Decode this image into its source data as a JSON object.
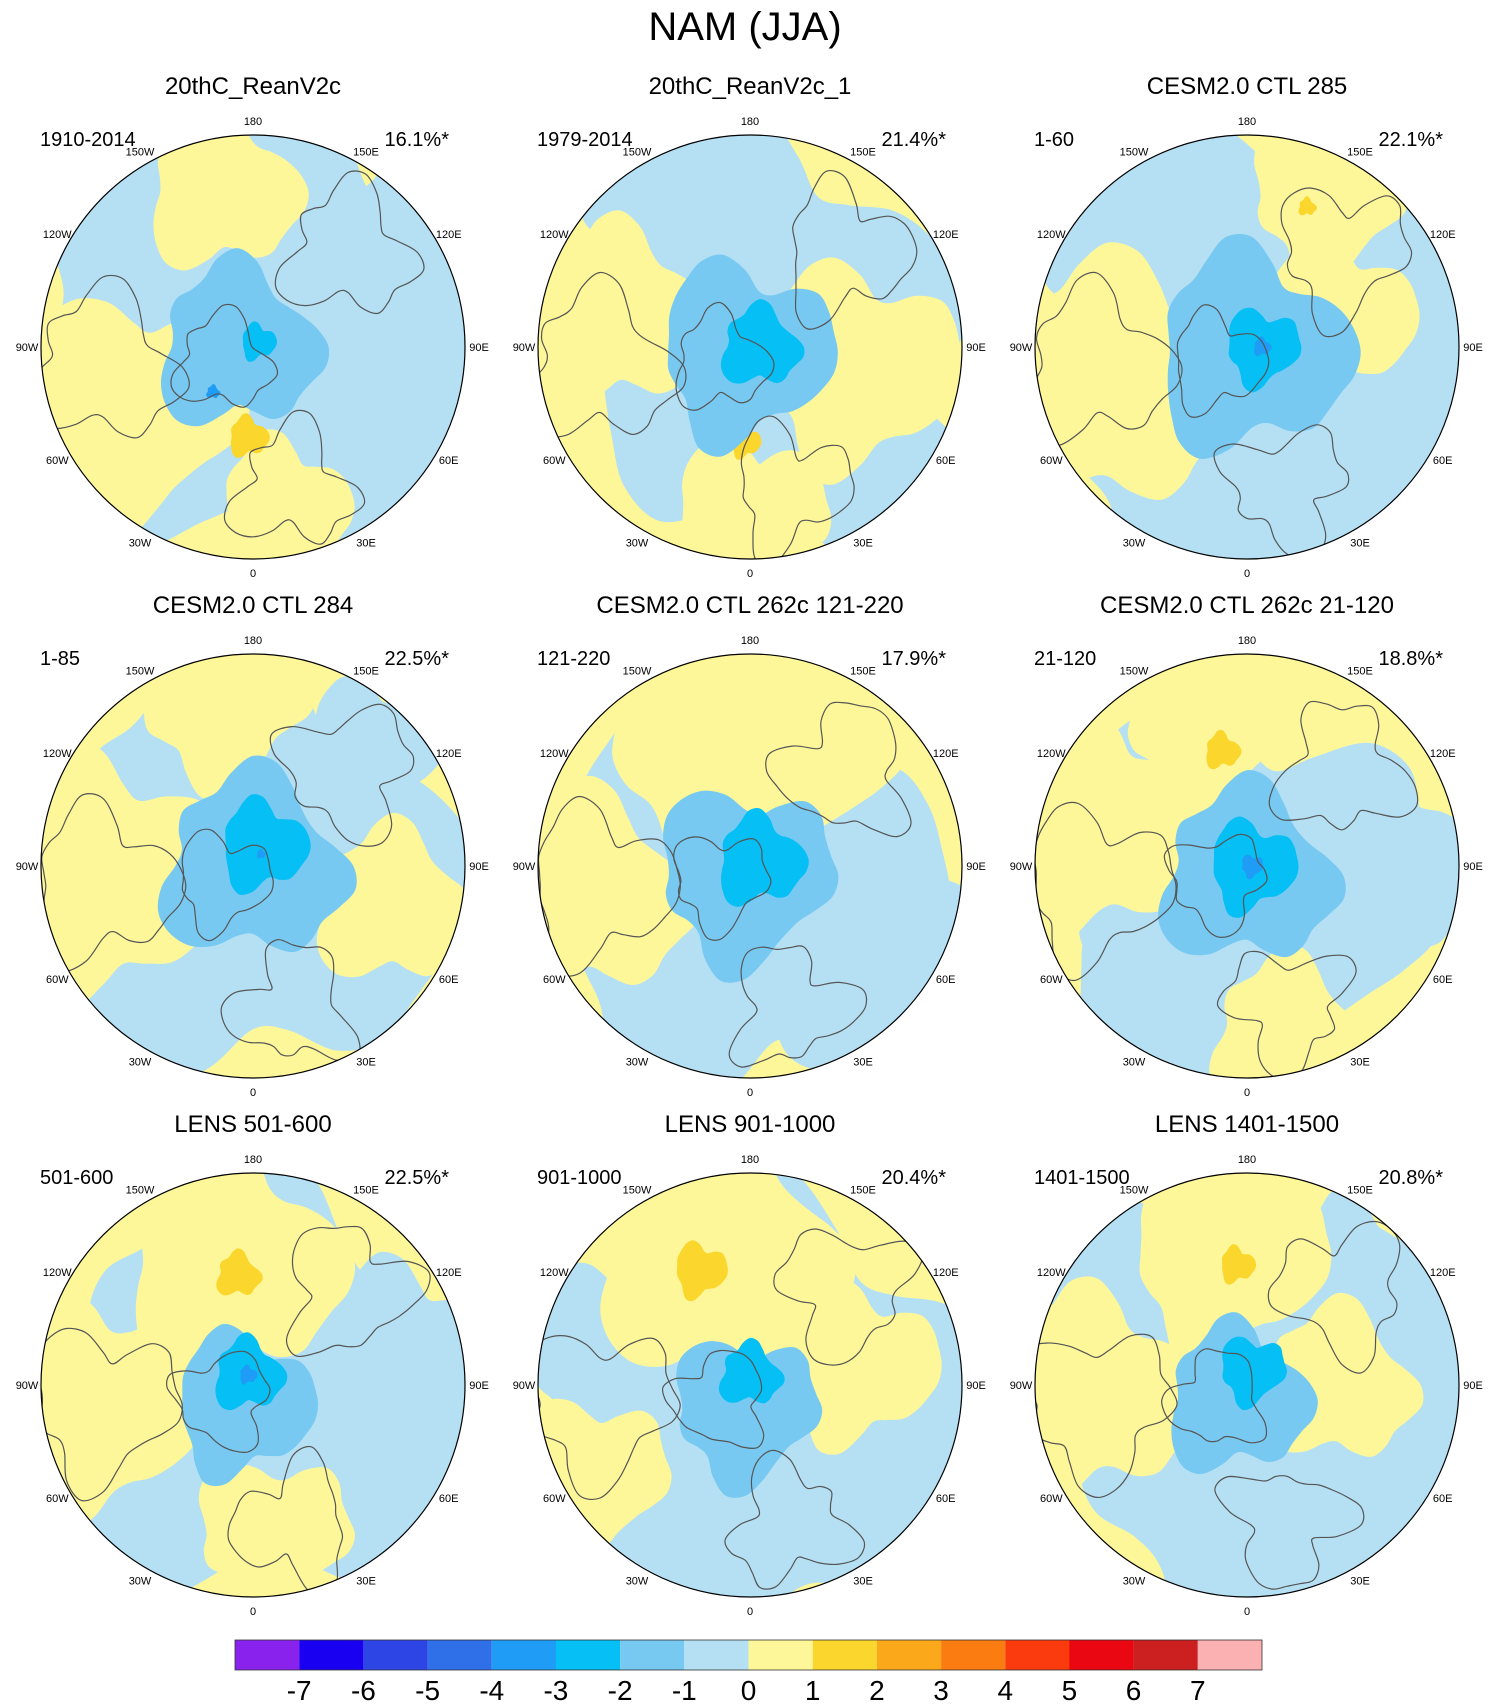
{
  "figure_title": "NAM (JJA)",
  "chart_data": {
    "type": "heatmap",
    "projection": "north-polar-stereographic",
    "title": "NAM (JJA)",
    "longitude_labels": [
      "180",
      "150E",
      "120E",
      "90E",
      "60E",
      "30E",
      "0",
      "30W",
      "60W",
      "90W",
      "120W",
      "150W"
    ],
    "colorbar": {
      "ticks": [
        "-7",
        "-6",
        "-5",
        "-4",
        "-3",
        "-2",
        "-1",
        "0",
        "1",
        "2",
        "3",
        "4",
        "5",
        "6",
        "7"
      ],
      "colors": [
        "#8a22ee",
        "#1a00f0",
        "#2e45e6",
        "#2f6fe8",
        "#1f9cf5",
        "#05bff5",
        "#78c9f1",
        "#b5e0f4",
        "#fdf79a",
        "#fbd62c",
        "#fba91a",
        "#fb7d11",
        "#fb3a0d",
        "#ea0711",
        "#cc1f1f",
        "#fbb1b1"
      ]
    },
    "panels": [
      {
        "title": "20thC_ReanV2c",
        "period": "1910-2014",
        "variance": "16.1%*"
      },
      {
        "title": "20thC_ReanV2c_1",
        "period": "1979-2014",
        "variance": "21.4%*"
      },
      {
        "title": "CESM2.0 CTL 285",
        "period": "1-60",
        "variance": "22.1%*"
      },
      {
        "title": "CESM2.0 CTL 284",
        "period": "1-85",
        "variance": "22.5%*"
      },
      {
        "title": "CESM2.0 CTL 262c 121-220",
        "period": "121-220",
        "variance": "17.9%*"
      },
      {
        "title": "CESM2.0 CTL 262c 21-120",
        "period": "21-120",
        "variance": "18.8%*"
      },
      {
        "title": "LENS 501-600",
        "period": "501-600",
        "variance": "22.5%*"
      },
      {
        "title": "LENS 901-1000",
        "period": "901-1000",
        "variance": "20.4%*"
      },
      {
        "title": "LENS 1401-1500",
        "period": "1401-1500",
        "variance": "20.8%*"
      }
    ]
  }
}
